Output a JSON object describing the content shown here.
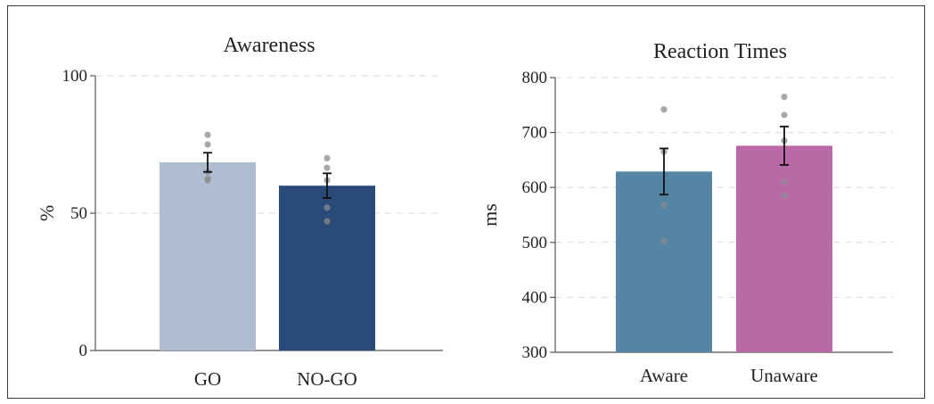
{
  "chart_data": [
    {
      "type": "bar",
      "title": "Awareness",
      "ylabel": "%",
      "xlabel": "",
      "ylim": [
        0,
        100
      ],
      "yticks": [
        0,
        50,
        100
      ],
      "grid": true,
      "categories": [
        "GO",
        "NO-GO"
      ],
      "values": [
        68.5,
        60
      ],
      "errors": [
        3.5,
        4.5
      ],
      "colors": [
        "#aebdcf",
        "#2a4a7a"
      ],
      "points": [
        [
          78.5,
          75,
          65,
          62,
          62.5
        ],
        [
          70,
          66.5,
          62,
          52,
          47
        ]
      ]
    },
    {
      "type": "bar",
      "title": "Reaction Times",
      "ylabel": "ms",
      "xlabel": "",
      "ylim": [
        300,
        800
      ],
      "yticks": [
        300,
        400,
        500,
        600,
        700,
        800
      ],
      "grid": true,
      "categories": [
        "Aware",
        "Unaware"
      ],
      "values": [
        629,
        676
      ],
      "errors": [
        42,
        35
      ],
      "colors": [
        "#5585a5",
        "#b96aa6"
      ],
      "points": [
        [
          742,
          665,
          568,
          503
        ],
        [
          765,
          732,
          685,
          610,
          585
        ]
      ]
    }
  ]
}
